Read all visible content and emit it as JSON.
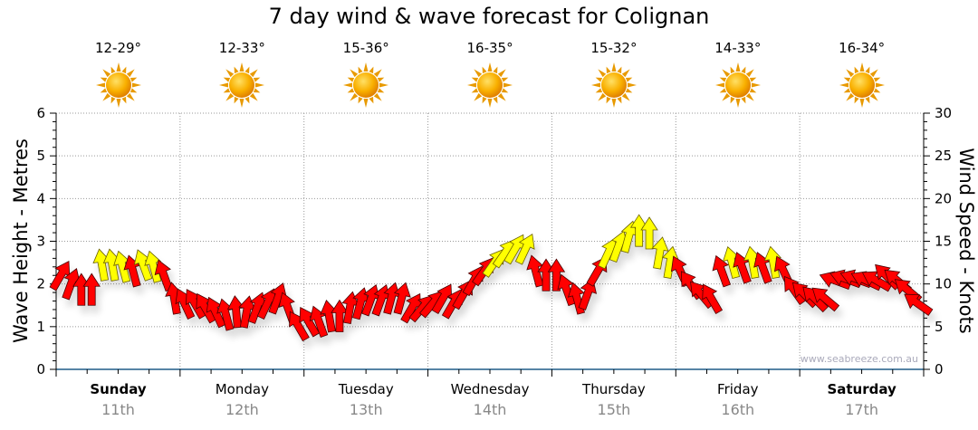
{
  "chart_data": {
    "type": "scatter",
    "title": "7 day wind & wave forecast for Colignan",
    "ylabel": "Wave Height - Metres",
    "ylabel_right": "Wind Speed - Knots",
    "ylim": [
      0,
      6
    ],
    "ylim_right": [
      0,
      30
    ],
    "yticks": [
      "0",
      "1",
      "2",
      "3",
      "4",
      "5",
      "6"
    ],
    "yticks_right": [
      "0",
      "5",
      "10",
      "15",
      "20",
      "25",
      "30"
    ],
    "grid": true,
    "watermark": "www.seabreeze.com.au",
    "days": [
      {
        "name": "Sunday",
        "date": "11th",
        "temp": "12-29°",
        "bold": true
      },
      {
        "name": "Monday",
        "date": "12th",
        "temp": "12-33°",
        "bold": false
      },
      {
        "name": "Tuesday",
        "date": "13th",
        "temp": "15-36°",
        "bold": false
      },
      {
        "name": "Wednesday",
        "date": "14th",
        "temp": "16-35°",
        "bold": false
      },
      {
        "name": "Thursday",
        "date": "15th",
        "temp": "15-32°",
        "bold": false
      },
      {
        "name": "Friday",
        "date": "16th",
        "temp": "14-33°",
        "bold": false
      },
      {
        "name": "Saturday",
        "date": "17th",
        "temp": "16-34°",
        "bold": true
      }
    ],
    "weather_icon": "sunny-icon",
    "wind_series_fields": [
      "hour",
      "knots",
      "direction_rotation_deg"
    ],
    "wind": [
      [
        0,
        11,
        30
      ],
      [
        2,
        10,
        20
      ],
      [
        4,
        9.3,
        0
      ],
      [
        6,
        9.3,
        0
      ],
      [
        8,
        12.2,
        -10
      ],
      [
        10,
        12.2,
        -10
      ],
      [
        12,
        12,
        -15
      ],
      [
        14,
        11.5,
        -15
      ],
      [
        16,
        12.2,
        -20
      ],
      [
        18,
        12,
        -15
      ],
      [
        20,
        11,
        -20
      ],
      [
        22,
        8.3,
        -10
      ],
      [
        24,
        7.7,
        -25
      ],
      [
        26,
        7.7,
        -30
      ],
      [
        28,
        7.2,
        -30
      ],
      [
        30,
        6.7,
        -25
      ],
      [
        32,
        6.4,
        -15
      ],
      [
        34,
        6.7,
        -5
      ],
      [
        36,
        6.7,
        10
      ],
      [
        38,
        7.2,
        20
      ],
      [
        40,
        7.7,
        25
      ],
      [
        42,
        8.3,
        20
      ],
      [
        44,
        7.2,
        -20
      ],
      [
        46,
        5.1,
        -30
      ],
      [
        48,
        5.6,
        -30
      ],
      [
        50,
        5.6,
        -20
      ],
      [
        52,
        6.2,
        -10
      ],
      [
        54,
        6.2,
        0
      ],
      [
        56,
        7.2,
        10
      ],
      [
        58,
        7.7,
        15
      ],
      [
        60,
        8.1,
        20
      ],
      [
        62,
        8.1,
        20
      ],
      [
        64,
        8.3,
        15
      ],
      [
        66,
        8.3,
        15
      ],
      [
        68,
        7.2,
        30
      ],
      [
        70,
        7.2,
        40
      ],
      [
        72,
        7.7,
        40
      ],
      [
        74,
        8.3,
        30
      ],
      [
        76,
        7.7,
        30
      ],
      [
        78,
        8.8,
        30
      ],
      [
        80,
        10.4,
        30
      ],
      [
        82,
        11.5,
        35
      ],
      [
        84,
        12.5,
        35
      ],
      [
        86,
        13.6,
        35
      ],
      [
        88,
        14.1,
        30
      ],
      [
        90,
        14.1,
        25
      ],
      [
        92,
        11.5,
        -15
      ],
      [
        94,
        11,
        0
      ],
      [
        96,
        11,
        0
      ],
      [
        98,
        9.3,
        -20
      ],
      [
        100,
        8.3,
        -15
      ],
      [
        102,
        8.8,
        20
      ],
      [
        104,
        11.5,
        30
      ],
      [
        106,
        13.6,
        25
      ],
      [
        108,
        14.4,
        20
      ],
      [
        110,
        15.5,
        15
      ],
      [
        112,
        16.2,
        0
      ],
      [
        114,
        15.9,
        0
      ],
      [
        116,
        13.6,
        10
      ],
      [
        118,
        12.5,
        10
      ],
      [
        120,
        11.5,
        -25
      ],
      [
        122,
        9.9,
        -35
      ],
      [
        124,
        8.8,
        -40
      ],
      [
        126,
        8.3,
        -30
      ],
      [
        128,
        11.5,
        -20
      ],
      [
        130,
        12.5,
        -15
      ],
      [
        132,
        11.9,
        -20
      ],
      [
        134,
        12.5,
        -10
      ],
      [
        136,
        11.9,
        -20
      ],
      [
        138,
        12.5,
        -10
      ],
      [
        140,
        11.5,
        -25
      ],
      [
        142,
        9.3,
        -35
      ],
      [
        144,
        8.8,
        -45
      ],
      [
        146,
        8.3,
        -45
      ],
      [
        148,
        8.3,
        -50
      ],
      [
        150,
        10.4,
        -70
      ],
      [
        152,
        10.6,
        -70
      ],
      [
        154,
        10.6,
        -70
      ],
      [
        156,
        10.4,
        -65
      ],
      [
        158,
        10.4,
        -60
      ],
      [
        160,
        10.9,
        -45
      ],
      [
        162,
        10.4,
        -50
      ],
      [
        164,
        9.3,
        -50
      ],
      [
        166,
        7.7,
        -55
      ]
    ],
    "colors": {
      "strong": "#ffff00",
      "normal": "#ff0000",
      "axis": "#1f5c87",
      "grid": "#999999",
      "sun": "#f5a000"
    }
  }
}
